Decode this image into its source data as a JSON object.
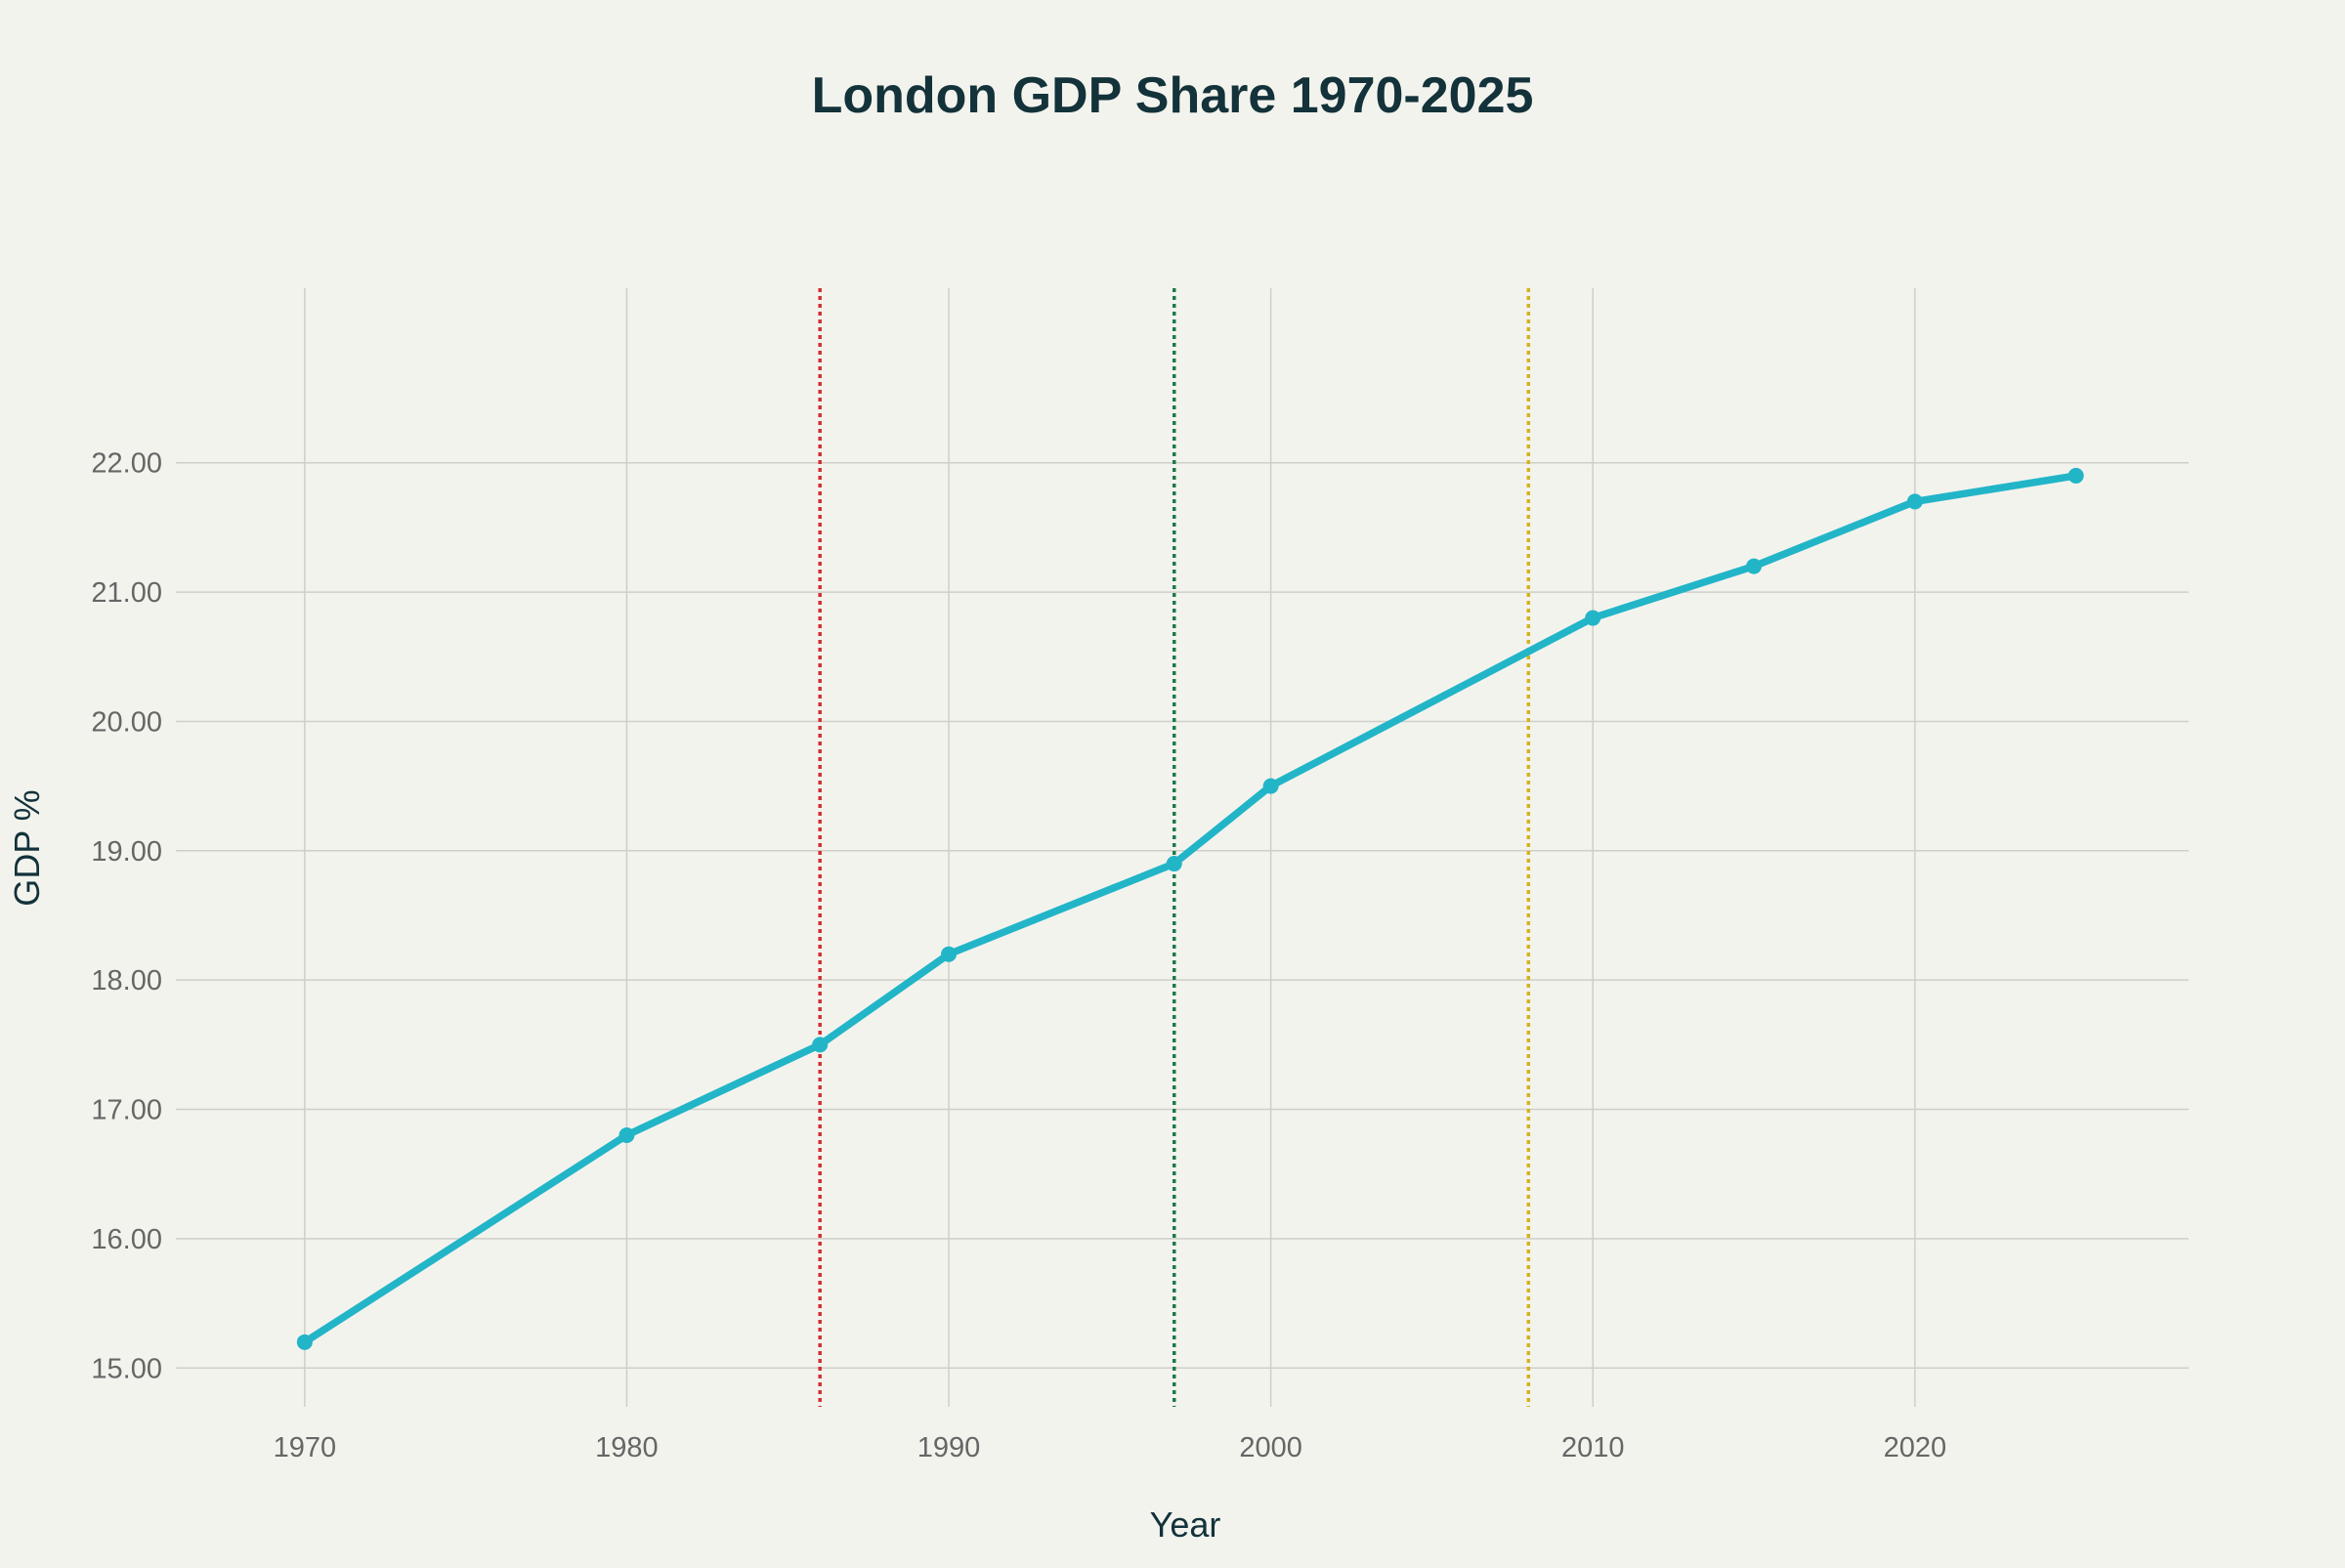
{
  "chart_data": {
    "type": "line",
    "title": "London GDP Share 1970-2025",
    "xlabel": "Year",
    "ylabel": "GDP %",
    "xlim": [
      1966,
      2028.5
    ],
    "ylim": [
      14.7,
      23.35
    ],
    "x_ticks": [
      1970,
      1980,
      1990,
      2000,
      2010,
      2020
    ],
    "y_ticks": [
      15,
      16,
      17,
      18,
      19,
      20,
      21,
      22
    ],
    "x_tick_labels": [
      "1970",
      "1980",
      "1990",
      "2000",
      "2010",
      "2020"
    ],
    "y_tick_labels": [
      "15.00",
      "16.00",
      "17.00",
      "18.00",
      "19.00",
      "20.00",
      "21.00",
      "22.00"
    ],
    "grid": true,
    "legend": "none",
    "series": [
      {
        "color": "#22b5c8",
        "x": [
          1970,
          1980,
          1986,
          1990,
          1997,
          2000,
          2010,
          2015,
          2020,
          2025
        ],
        "y": [
          15.2,
          16.8,
          17.5,
          18.2,
          18.9,
          19.5,
          20.8,
          21.2,
          21.7,
          21.9
        ]
      }
    ],
    "vertical_lines": [
      {
        "x": 1986,
        "color": "#d32f2f",
        "style": "dotted"
      },
      {
        "x": 1997,
        "color": "#1e7a46",
        "style": "dotted"
      },
      {
        "x": 2008,
        "color": "#d4b21f",
        "style": "dotted"
      }
    ],
    "colors": {
      "background": "#f3f3ee",
      "grid": "#cfcfc9",
      "text": "#13323a",
      "tick_text": "#666666"
    }
  }
}
